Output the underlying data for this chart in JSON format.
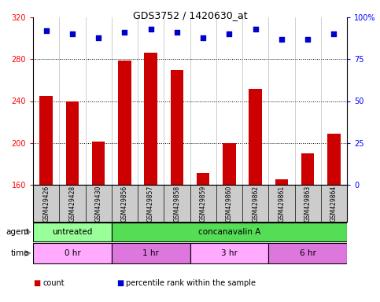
{
  "title": "GDS3752 / 1420630_at",
  "samples": [
    "GSM429426",
    "GSM429428",
    "GSM429430",
    "GSM429856",
    "GSM429857",
    "GSM429858",
    "GSM429859",
    "GSM429860",
    "GSM429862",
    "GSM429861",
    "GSM429863",
    "GSM429864"
  ],
  "counts": [
    245,
    240,
    201,
    279,
    286,
    270,
    171,
    200,
    252,
    165,
    190,
    209
  ],
  "percentile_ranks": [
    92,
    90,
    88,
    91,
    93,
    91,
    88,
    90,
    93,
    87,
    87,
    90
  ],
  "ylim_left": [
    160,
    320
  ],
  "yticks_left": [
    160,
    200,
    240,
    280,
    320
  ],
  "yticks_right_labels": [
    "0",
    "25",
    "50",
    "75",
    "100%"
  ],
  "bar_color": "#cc0000",
  "dot_color": "#0000cc",
  "agent_groups": [
    {
      "label": "untreated",
      "start": 0,
      "end": 3,
      "color": "#99ff99"
    },
    {
      "label": "concanavalin A",
      "start": 3,
      "end": 12,
      "color": "#55dd55"
    }
  ],
  "time_groups": [
    {
      "label": "0 hr",
      "start": 0,
      "end": 3,
      "color": "#ffaaff"
    },
    {
      "label": "1 hr",
      "start": 3,
      "end": 6,
      "color": "#dd77dd"
    },
    {
      "label": "3 hr",
      "start": 6,
      "end": 9,
      "color": "#ffaaff"
    },
    {
      "label": "6 hr",
      "start": 9,
      "end": 12,
      "color": "#dd77dd"
    }
  ],
  "legend_items": [
    {
      "label": "count",
      "color": "#cc0000"
    },
    {
      "label": "percentile rank within the sample",
      "color": "#0000cc"
    }
  ],
  "bg_color": "#ffffff",
  "label_area_color": "#cccccc"
}
